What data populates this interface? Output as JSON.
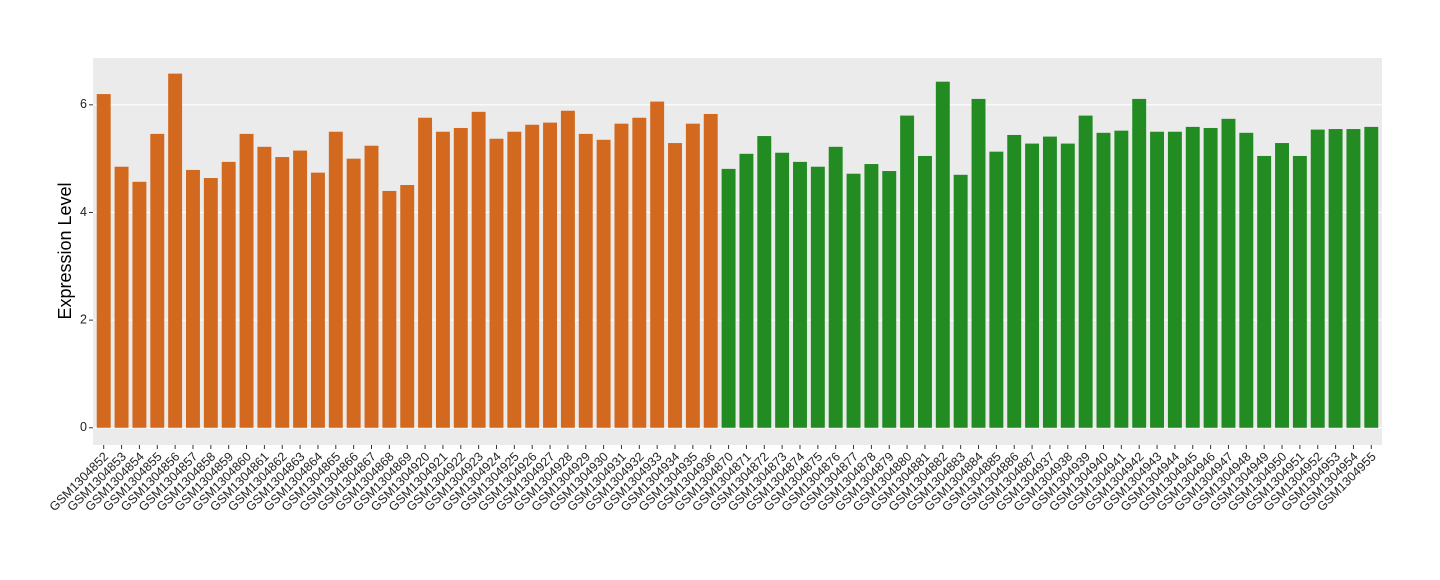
{
  "chart_data": {
    "type": "bar",
    "y_label": "Expression Level",
    "categories": [
      "GSM1304852",
      "GSM1304853",
      "GSM1304854",
      "GSM1304855",
      "GSM1304856",
      "GSM1304857",
      "GSM1304858",
      "GSM1304859",
      "GSM1304860",
      "GSM1304861",
      "GSM1304862",
      "GSM1304863",
      "GSM1304864",
      "GSM1304865",
      "GSM1304866",
      "GSM1304867",
      "GSM1304868",
      "GSM1304869",
      "GSM1304920",
      "GSM1304921",
      "GSM1304922",
      "GSM1304923",
      "GSM1304924",
      "GSM1304925",
      "GSM1304926",
      "GSM1304927",
      "GSM1304928",
      "GSM1304929",
      "GSM1304930",
      "GSM1304931",
      "GSM1304932",
      "GSM1304933",
      "GSM1304934",
      "GSM1304935",
      "GSM1304936",
      "GSM1304870",
      "GSM1304871",
      "GSM1304872",
      "GSM1304873",
      "GSM1304874",
      "GSM1304875",
      "GSM1304876",
      "GSM1304877",
      "GSM1304878",
      "GSM1304879",
      "GSM1304880",
      "GSM1304881",
      "GSM1304882",
      "GSM1304883",
      "GSM1304884",
      "GSM1304885",
      "GSM1304886",
      "GSM1304887",
      "GSM1304937",
      "GSM1304938",
      "GSM1304939",
      "GSM1304940",
      "GSM1304941",
      "GSM1304942",
      "GSM1304943",
      "GSM1304944",
      "GSM1304945",
      "GSM1304946",
      "GSM1304947",
      "GSM1304948",
      "GSM1304949",
      "GSM1304950",
      "GSM1304951",
      "GSM1304952",
      "GSM1304953",
      "GSM1304954",
      "GSM1304955"
    ],
    "values": [
      6.2,
      4.85,
      4.57,
      5.46,
      6.58,
      4.79,
      4.64,
      4.94,
      5.46,
      5.22,
      5.03,
      5.15,
      4.74,
      5.5,
      5.0,
      5.24,
      4.4,
      4.51,
      5.76,
      5.5,
      5.57,
      5.87,
      5.37,
      5.5,
      5.63,
      5.67,
      5.89,
      5.46,
      5.35,
      5.65,
      5.76,
      6.06,
      5.29,
      5.65,
      5.83,
      4.81,
      5.09,
      5.42,
      5.11,
      4.94,
      4.85,
      5.22,
      4.72,
      4.9,
      4.77,
      5.8,
      5.05,
      6.43,
      4.7,
      6.11,
      5.13,
      5.44,
      5.28,
      5.41,
      5.28,
      5.8,
      5.48,
      5.52,
      6.11,
      5.5,
      5.5,
      5.59,
      5.57,
      5.74,
      5.48,
      5.05,
      5.29,
      5.05,
      5.54,
      5.55,
      5.55,
      5.59
    ],
    "colors": [
      "#d2691e",
      "#d2691e",
      "#d2691e",
      "#d2691e",
      "#d2691e",
      "#d2691e",
      "#d2691e",
      "#d2691e",
      "#d2691e",
      "#d2691e",
      "#d2691e",
      "#d2691e",
      "#d2691e",
      "#d2691e",
      "#d2691e",
      "#d2691e",
      "#d2691e",
      "#d2691e",
      "#d2691e",
      "#d2691e",
      "#d2691e",
      "#d2691e",
      "#d2691e",
      "#d2691e",
      "#d2691e",
      "#d2691e",
      "#d2691e",
      "#d2691e",
      "#d2691e",
      "#d2691e",
      "#d2691e",
      "#d2691e",
      "#d2691e",
      "#d2691e",
      "#d2691e",
      "#228b22",
      "#228b22",
      "#228b22",
      "#228b22",
      "#228b22",
      "#228b22",
      "#228b22",
      "#228b22",
      "#228b22",
      "#228b22",
      "#228b22",
      "#228b22",
      "#228b22",
      "#228b22",
      "#228b22",
      "#228b22",
      "#228b22",
      "#228b22",
      "#228b22",
      "#228b22",
      "#228b22",
      "#228b22",
      "#228b22",
      "#228b22",
      "#228b22",
      "#228b22",
      "#228b22",
      "#228b22",
      "#228b22",
      "#228b22",
      "#228b22",
      "#228b22",
      "#228b22",
      "#228b22",
      "#228b22",
      "#228b22",
      "#228b22"
    ],
    "ylim": [
      -0.32,
      6.87
    ],
    "yticks": [
      0,
      2,
      4,
      6
    ],
    "grid": true
  }
}
